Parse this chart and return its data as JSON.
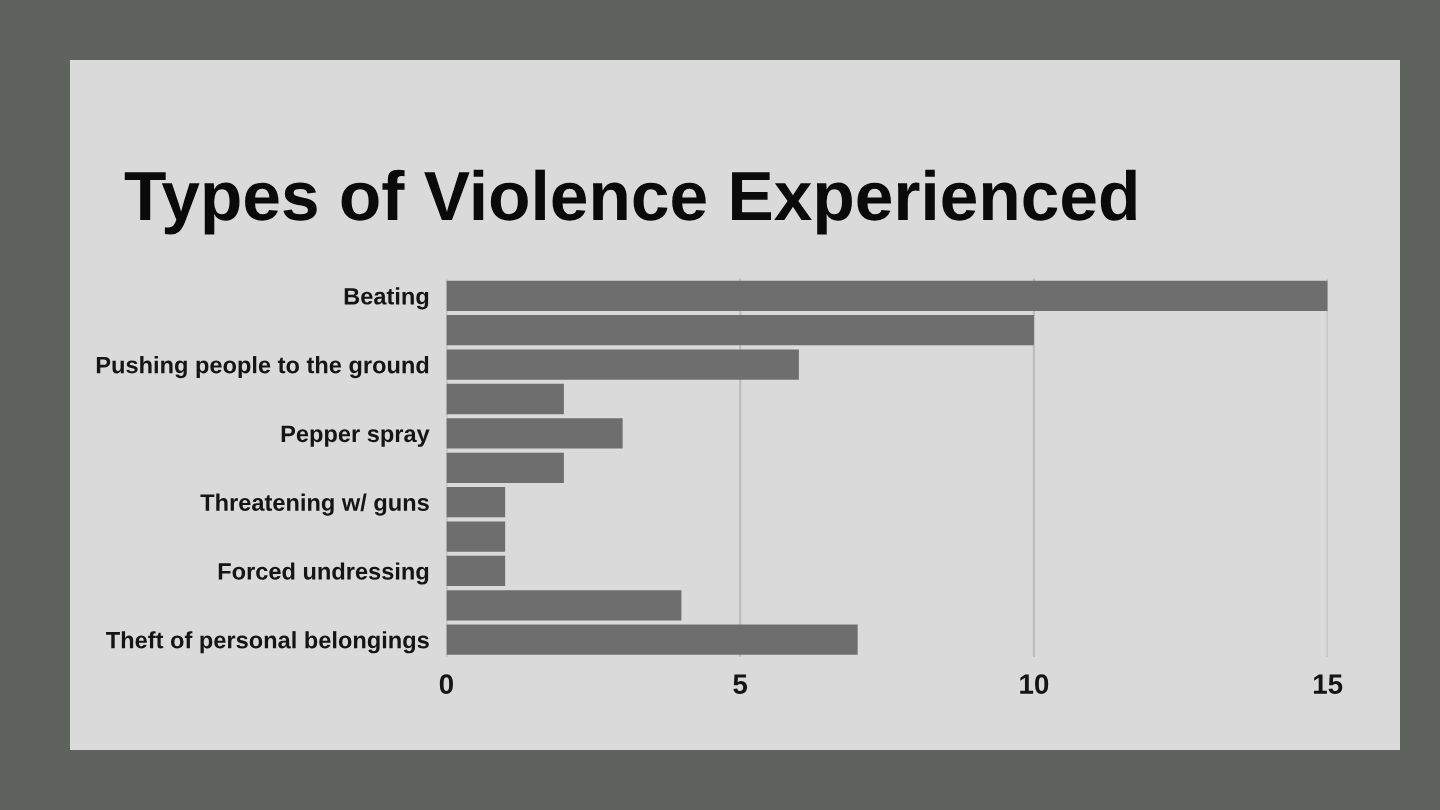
{
  "chart_data": {
    "type": "bar",
    "orientation": "horizontal",
    "title": "Types of Violence Experienced",
    "categories": [
      "Beating",
      null,
      "Pushing people to the ground",
      null,
      "Pepper spray",
      null,
      "Threatening w/ guns",
      null,
      "Forced undressing",
      null,
      "Theft of personal belongings"
    ],
    "values": [
      15,
      10,
      6,
      2,
      3,
      2,
      1,
      1,
      1,
      4,
      7
    ],
    "color": "#6e6e6e",
    "xlim": [
      0,
      15
    ],
    "xticks": [
      0,
      5,
      10,
      15
    ],
    "grid": "x"
  }
}
